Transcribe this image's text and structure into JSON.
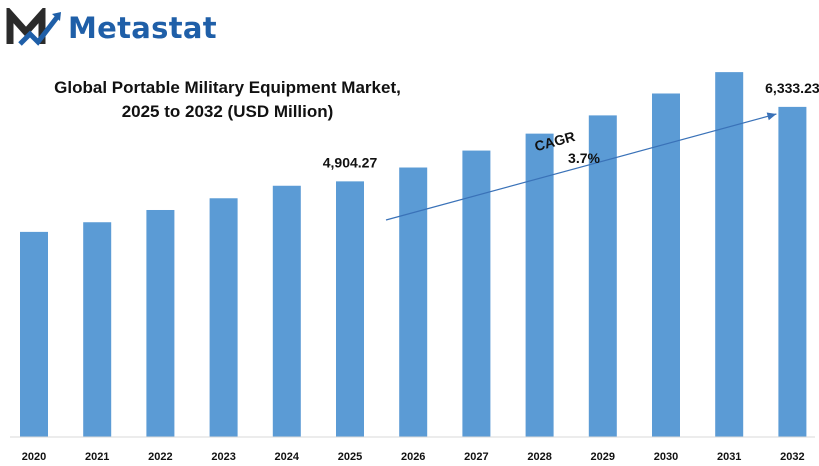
{
  "brand": {
    "name": "Metastat",
    "logo_icon": "metastat-m-logo-icon",
    "color": "#1f5fa8"
  },
  "chart_data": {
    "type": "bar",
    "title_lines": [
      "Global Portable Military Equipment Market,",
      "2025 to 2032 (USD Million)"
    ],
    "categories": [
      "2020",
      "2021",
      "2022",
      "2023",
      "2024",
      "2025",
      "2026",
      "2027",
      "2028",
      "2029",
      "2030",
      "2031",
      "2032"
    ],
    "values": [
      3935,
      4120,
      4355,
      4580,
      4820,
      4904.27,
      5170,
      5495,
      5820,
      6170,
      6590,
      7000,
      6333.23
    ],
    "bar_color": "#5b9bd5",
    "ylim": [
      0,
      8000
    ],
    "grid": false,
    "data_labels": [
      {
        "category": "2025",
        "text": "4,904.27"
      },
      {
        "category": "2032",
        "text": "6,333.23"
      }
    ],
    "annotation": {
      "label": "CAGR",
      "value": "3.7%",
      "from_category": "2025",
      "to_category": "2032"
    }
  }
}
